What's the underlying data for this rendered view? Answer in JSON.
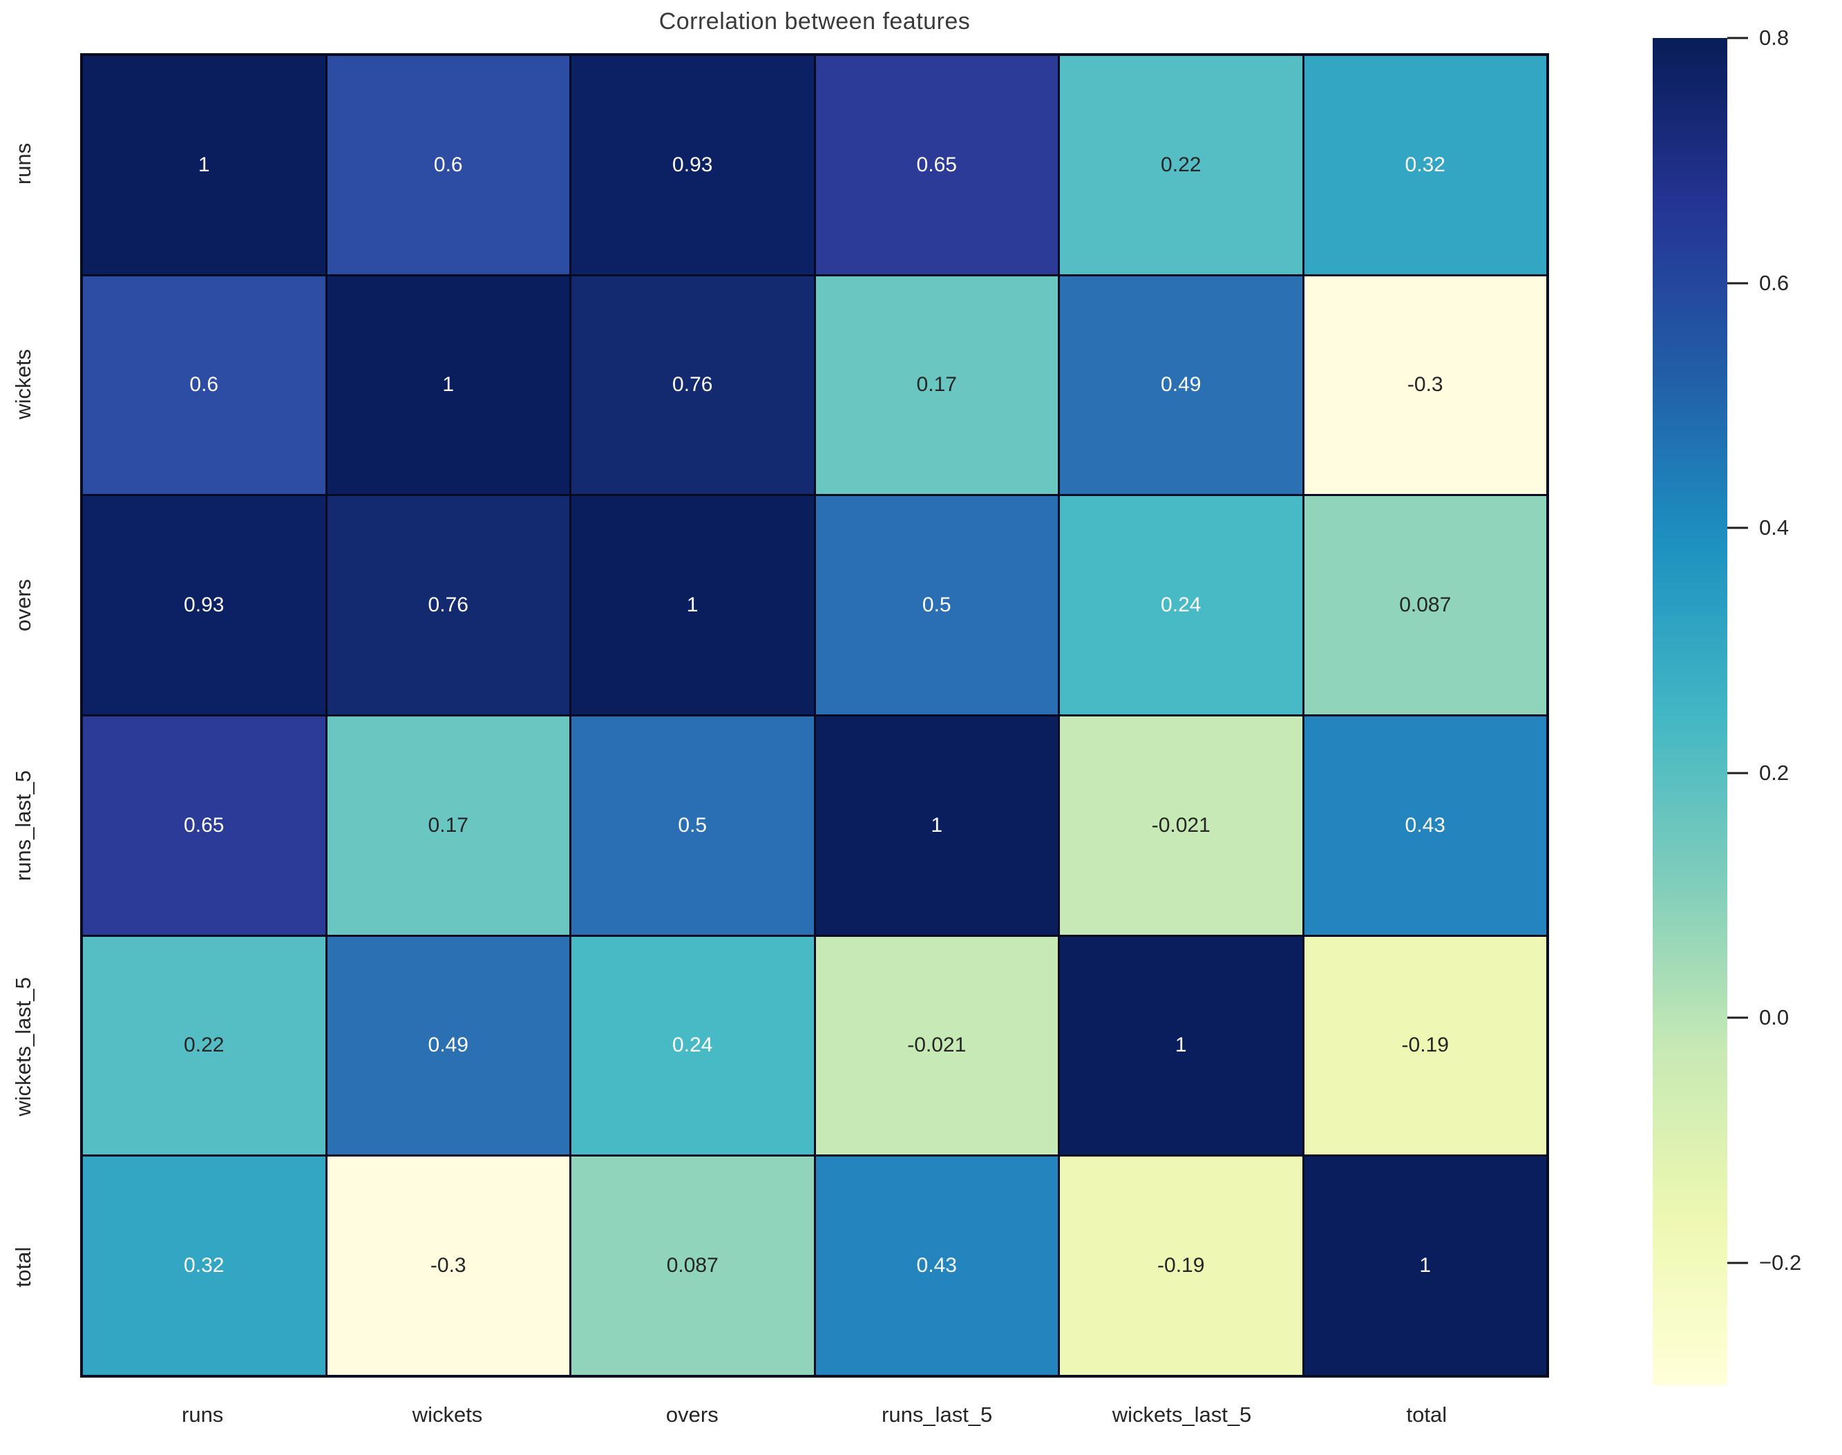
{
  "figure": {
    "title": "Correlation between features",
    "background": "#ffffff",
    "title_color": "#3a3a3a",
    "tick_label_color": "#262626",
    "grid_line_color": "#070b22",
    "annotation_light_color": "#ffffff",
    "annotation_dark_color": "#262626"
  },
  "chart_data": {
    "type": "heatmap",
    "title": "Correlation between features",
    "categories": [
      "runs",
      "wickets",
      "overs",
      "runs_last_5",
      "wickets_last_5",
      "total"
    ],
    "matrix": [
      [
        1,
        0.6,
        0.93,
        0.65,
        0.22,
        0.32
      ],
      [
        0.6,
        1,
        0.76,
        0.17,
        0.49,
        -0.3
      ],
      [
        0.93,
        0.76,
        1,
        0.5,
        0.24,
        0.087
      ],
      [
        0.65,
        0.17,
        0.5,
        1,
        -0.021,
        0.43
      ],
      [
        0.22,
        0.49,
        0.24,
        -0.021,
        1,
        -0.19
      ],
      [
        0.32,
        -0.3,
        0.087,
        0.43,
        -0.19,
        1
      ]
    ],
    "annotations": [
      [
        "1",
        "0.6",
        "0.93",
        "0.65",
        "0.22",
        "0.32"
      ],
      [
        "0.6",
        "1",
        "0.76",
        "0.17",
        "0.49",
        "-0.3"
      ],
      [
        "0.93",
        "0.76",
        "1",
        "0.5",
        "0.24",
        "0.087"
      ],
      [
        "0.65",
        "0.17",
        "0.5",
        "1",
        "-0.021",
        "0.43"
      ],
      [
        "0.22",
        "0.49",
        "0.24",
        "-0.021",
        "1",
        "-0.19"
      ],
      [
        "0.32",
        "-0.3",
        "0.087",
        "0.43",
        "-0.19",
        "1"
      ]
    ],
    "cell_colors": [
      [
        "#0a1e5e",
        "#2c4da3",
        "#0c2164",
        "#2b3b97",
        "#55bec4",
        "#33a6c4"
      ],
      [
        "#2c4da3",
        "#0a1e5e",
        "#132970",
        "#69c6c1",
        "#2a70b3",
        "#fffce0"
      ],
      [
        "#0c2164",
        "#132970",
        "#0a1e5e",
        "#2a6fb3",
        "#48bac5",
        "#90d4bb"
      ],
      [
        "#2b3b97",
        "#69c6c1",
        "#2a6fb3",
        "#0a1e5e",
        "#c6e9b5",
        "#2484bd"
      ],
      [
        "#55bec4",
        "#2a70b3",
        "#48bac5",
        "#c6e9b5",
        "#0a1e5e",
        "#eef7b4"
      ],
      [
        "#33a6c4",
        "#fffce0",
        "#90d4bb",
        "#2484bd",
        "#eef7b4",
        "#0a1e5e"
      ]
    ],
    "text_colors": [
      [
        "light",
        "light",
        "light",
        "light",
        "dark",
        "light"
      ],
      [
        "light",
        "light",
        "light",
        "dark",
        "light",
        "dark"
      ],
      [
        "light",
        "light",
        "light",
        "light",
        "light",
        "dark"
      ],
      [
        "light",
        "dark",
        "light",
        "light",
        "dark",
        "light"
      ],
      [
        "dark",
        "light",
        "light",
        "dark",
        "light",
        "dark"
      ],
      [
        "light",
        "dark",
        "dark",
        "light",
        "dark",
        "light"
      ]
    ],
    "colormap": "YlGnBu",
    "vmin": -0.3,
    "vmax": 0.8,
    "legend_position": "right",
    "colorbar": {
      "ticks": [
        {
          "value": 0.8,
          "label": "0.8"
        },
        {
          "value": 0.6,
          "label": "0.6"
        },
        {
          "value": 0.4,
          "label": "0.4"
        },
        {
          "value": 0.2,
          "label": "0.2"
        },
        {
          "value": 0.0,
          "label": "0.0"
        },
        {
          "value": -0.2,
          "label": "−0.2"
        }
      ],
      "gradient_stops": [
        "#081d58",
        "#253494",
        "#225ea8",
        "#1d91c0",
        "#41b6c4",
        "#7fcdbb",
        "#c7e9b4",
        "#edf8b1",
        "#ffffd9"
      ]
    }
  }
}
